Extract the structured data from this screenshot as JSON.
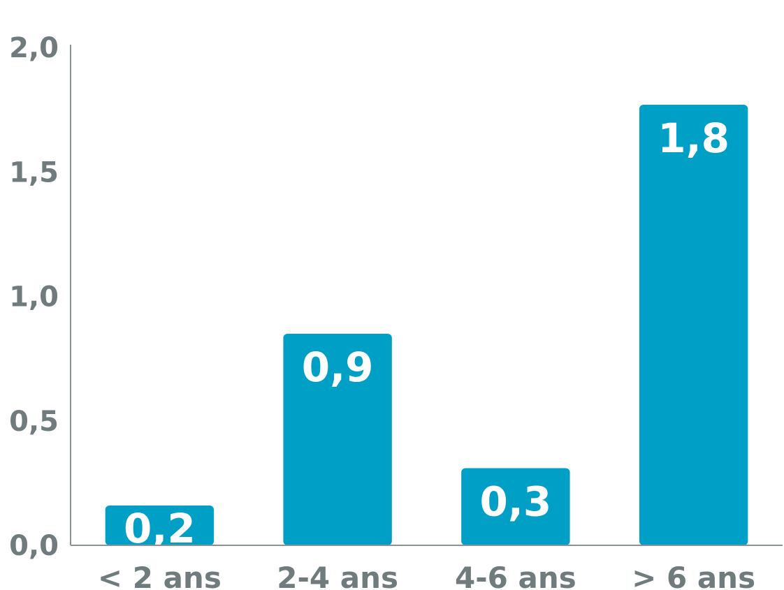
{
  "chart_data": {
    "type": "bar",
    "categories": [
      "< 2 ans",
      "2-4 ans",
      "4-6 ans",
      "> 6 ans"
    ],
    "values": [
      0.16,
      0.85,
      0.31,
      1.77
    ],
    "value_labels": [
      "0,2",
      "0,9",
      "0,3",
      "1,8"
    ],
    "ylim": [
      0,
      2.0
    ],
    "yticks": [
      0.0,
      0.5,
      1.0,
      1.5,
      2.0
    ],
    "ytick_labels": [
      "0,0",
      "0,5",
      "1,0",
      "1,5",
      "2,0"
    ],
    "title": "",
    "xlabel": "",
    "ylabel": "",
    "grid": false,
    "colors": {
      "bar": "#00a0c6",
      "axis": "#8a9496",
      "text": "#6f7b7d",
      "value_text": "#ffffff"
    }
  }
}
